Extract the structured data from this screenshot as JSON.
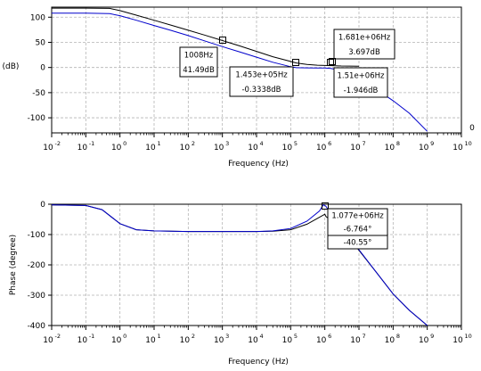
{
  "colors": {
    "series_a": "#000000",
    "series_b": "#0000cc",
    "grid": "#b4b4b4",
    "tip_bg": "#ffffff"
  },
  "chart_data": [
    {
      "type": "line",
      "xscale": "log",
      "xlim": [
        0.01,
        10000000000
      ],
      "ylim": [
        -130,
        120
      ],
      "xlabel": "Frequency (Hz)",
      "ylabel": "(dB)",
      "grid": true,
      "x_tick_exponents": [
        "-2",
        "-1",
        "0",
        "1",
        "2",
        "3",
        "4",
        "5",
        "6",
        "7",
        "8",
        "9",
        "10"
      ],
      "x_tick_base": "10",
      "y_ticks": [
        "100",
        "50",
        "0",
        "-50",
        "-100"
      ],
      "y_tick_values": [
        100,
        50,
        0,
        -50,
        -100
      ],
      "edge_label": "0",
      "series": [
        {
          "x": [
            0.01,
            0.1,
            0.5,
            1,
            3,
            10,
            30,
            100,
            300,
            1008,
            3000,
            10000,
            30000,
            100000,
            145300,
            300000,
            600000,
            1000000,
            1681000,
            3000000,
            10000000
          ],
          "y": [
            118,
            118,
            117.5,
            113,
            104,
            94,
            84.5,
            74,
            64.5,
            53.5,
            43.5,
            32,
            21.5,
            12,
            9,
            6,
            4.5,
            4,
            3.697,
            3,
            2.5
          ]
        },
        {
          "x": [
            0.01,
            0.1,
            0.5,
            1,
            3,
            10,
            30,
            100,
            300,
            1008,
            3000,
            10000,
            30000,
            100000,
            145300,
            300000,
            600000,
            1000000,
            1510000,
            2500000,
            5000000,
            10000000,
            30000000,
            100000000,
            300000000,
            1000000000
          ],
          "y": [
            108,
            108,
            107,
            103,
            94,
            83.5,
            74,
            63.5,
            53,
            41.49,
            31.5,
            20.5,
            10.5,
            1.5,
            -0.3338,
            -0.8,
            -1,
            -1.1,
            -1.946,
            -5,
            -14,
            -25,
            -42,
            -66,
            -91,
            -127
          ]
        }
      ],
      "datatips": [
        {
          "lines": [
            "1008Hz",
            "41.49dB"
          ]
        },
        {
          "lines": [
            "1.453e+05Hz",
            "-0.3338dB"
          ]
        },
        {
          "lines": [
            "1.681e+06Hz",
            "3.697dB"
          ]
        },
        {
          "lines": [
            "1.51e+06Hz",
            "-1.946dB"
          ]
        }
      ]
    },
    {
      "type": "line",
      "xscale": "log",
      "xlim": [
        0.01,
        10000000000
      ],
      "ylim": [
        -400,
        0
      ],
      "xlabel": "Frequency (Hz)",
      "ylabel": "Phase (degree)",
      "grid": true,
      "x_tick_exponents": [
        "-2",
        "-1",
        "0",
        "1",
        "2",
        "3",
        "4",
        "5",
        "6",
        "7",
        "8",
        "9",
        "10"
      ],
      "x_tick_base": "10",
      "y_ticks": [
        "0",
        "-100",
        "-200",
        "-300",
        "-400"
      ],
      "y_tick_values": [
        0,
        -100,
        -200,
        -300,
        -400
      ],
      "series": [
        {
          "x": [
            0.01,
            0.1,
            0.3,
            1,
            3,
            10,
            100,
            1000,
            10000,
            30000,
            100000,
            300000,
            700000,
            1000000,
            1077000,
            2000000,
            5000000,
            10000000,
            30000000,
            100000000,
            300000000,
            1000000000
          ],
          "y": [
            -2,
            -4,
            -18,
            -64,
            -84,
            -88,
            -90,
            -90,
            -90,
            -89,
            -84,
            -66,
            -43,
            -33,
            -40.55,
            -62,
            -108,
            -152,
            -220,
            -296,
            -350,
            -400
          ]
        },
        {
          "x": [
            0.01,
            0.1,
            0.3,
            1,
            3,
            10,
            100,
            1000,
            10000,
            30000,
            100000,
            300000,
            700000,
            900000,
            1000000,
            1077000,
            2000000,
            5000000,
            10000000,
            30000000,
            100000000,
            300000000,
            1000000000
          ],
          "y": [
            -2,
            -4,
            -18,
            -64,
            -84,
            -88,
            -90,
            -90,
            -90,
            -88,
            -80,
            -56,
            -22,
            -2,
            -4,
            -6.764,
            -52,
            -104,
            -150,
            -220,
            -296,
            -350,
            -400
          ]
        }
      ],
      "datatips": [
        {
          "lines": [
            "1.077e+06Hz",
            "-6.764°",
            "-40.55°"
          ]
        }
      ]
    }
  ]
}
